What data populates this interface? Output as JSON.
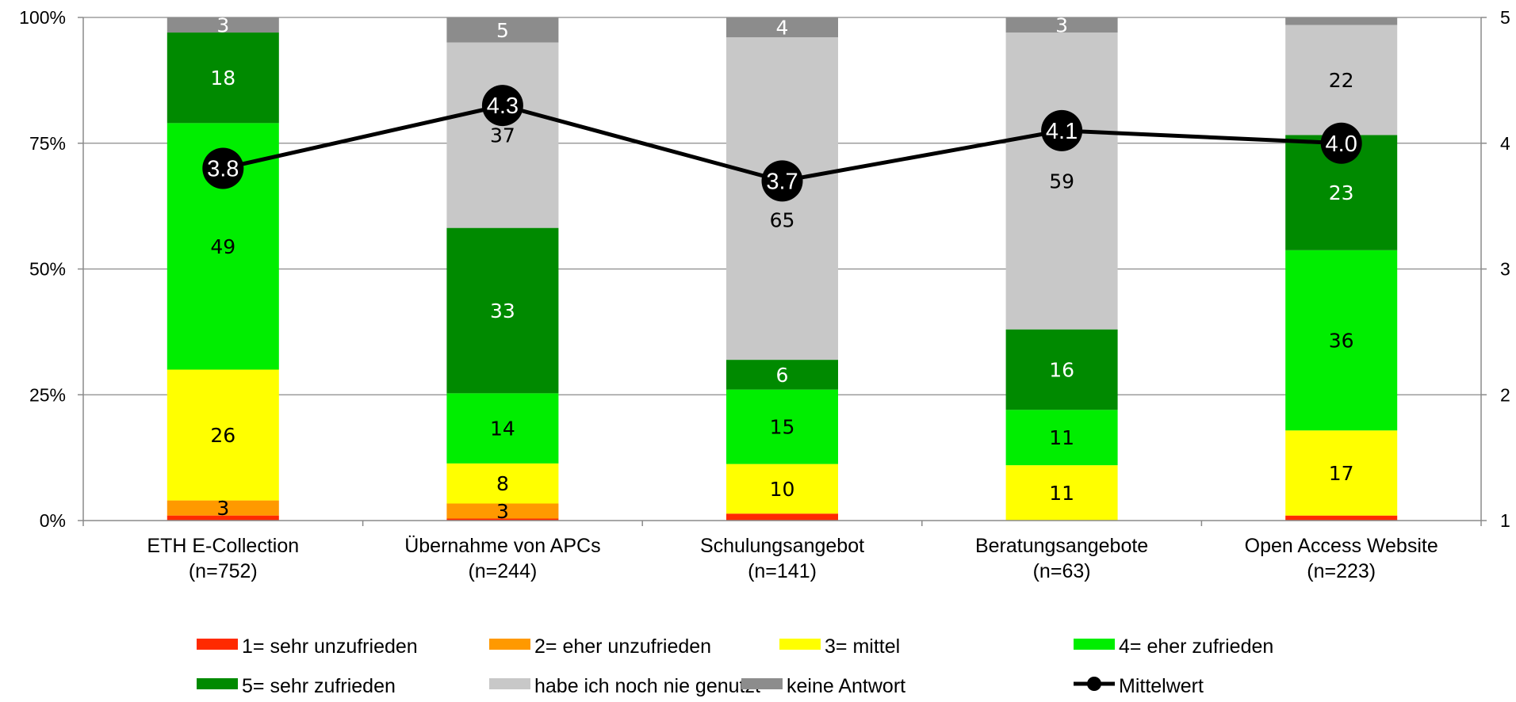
{
  "chart_data": {
    "type": "bar",
    "stacked": true,
    "percent_stacked": true,
    "categories": [
      "ETH E-Collection",
      "Übernahme von APCs",
      "Schulungsangebot",
      "Beratungsangebote",
      "Open Access Website"
    ],
    "category_n": [
      "(n=752)",
      "(n=244)",
      "(n=141)",
      "(n=63)",
      "(n=223)"
    ],
    "series": [
      {
        "name": "1= sehr unzufrieden",
        "color": "#ff2a00",
        "values": [
          1,
          0.4,
          1.4,
          0,
          1
        ],
        "labels": [
          "",
          "",
          "",
          "",
          ""
        ]
      },
      {
        "name": "2= eher unzufrieden",
        "color": "#ff9900",
        "values": [
          3,
          3,
          0,
          0,
          0
        ],
        "labels": [
          "3",
          "3",
          "",
          "",
          ""
        ]
      },
      {
        "name": "3= mittel",
        "color": "#ffff00",
        "values": [
          26,
          8,
          10,
          11,
          17
        ],
        "labels": [
          "26",
          "8",
          "10",
          "11",
          "17"
        ]
      },
      {
        "name": "4= eher zufrieden",
        "color": "#00ee00",
        "values": [
          49,
          14,
          15,
          11,
          36
        ],
        "labels": [
          "49",
          "14",
          "15",
          "11",
          "36"
        ]
      },
      {
        "name": "5= sehr zufrieden",
        "color": "#008a00",
        "values": [
          18,
          33,
          6,
          16,
          23
        ],
        "labels": [
          "18",
          "33",
          "6",
          "16",
          "23"
        ]
      },
      {
        "name": "habe ich noch nie genutzt",
        "color": "#c8c8c8",
        "values": [
          0,
          37,
          65,
          59,
          22
        ],
        "labels": [
          "",
          "37",
          "65",
          "59",
          "22"
        ]
      },
      {
        "name": "keine Antwort",
        "color": "#8c8c8c",
        "values": [
          3,
          5,
          4,
          3,
          1.5
        ],
        "labels": [
          "3",
          "5",
          "4",
          "3",
          ""
        ]
      }
    ],
    "line_series": {
      "name": "Mittelwert",
      "color": "#000000",
      "values": [
        3.8,
        4.3,
        3.7,
        4.1,
        4.0
      ],
      "labels": [
        "3.8",
        "4.3",
        "3.7",
        "4.1",
        "4.0"
      ]
    },
    "y_left": {
      "ticks": [
        "0%",
        "25%",
        "50%",
        "75%",
        "100%"
      ],
      "range": [
        0,
        100
      ]
    },
    "y_right": {
      "ticks": [
        "1",
        "2",
        "3",
        "4",
        "5"
      ],
      "range": [
        1,
        5
      ]
    },
    "grid": true,
    "legend_position": "bottom"
  }
}
